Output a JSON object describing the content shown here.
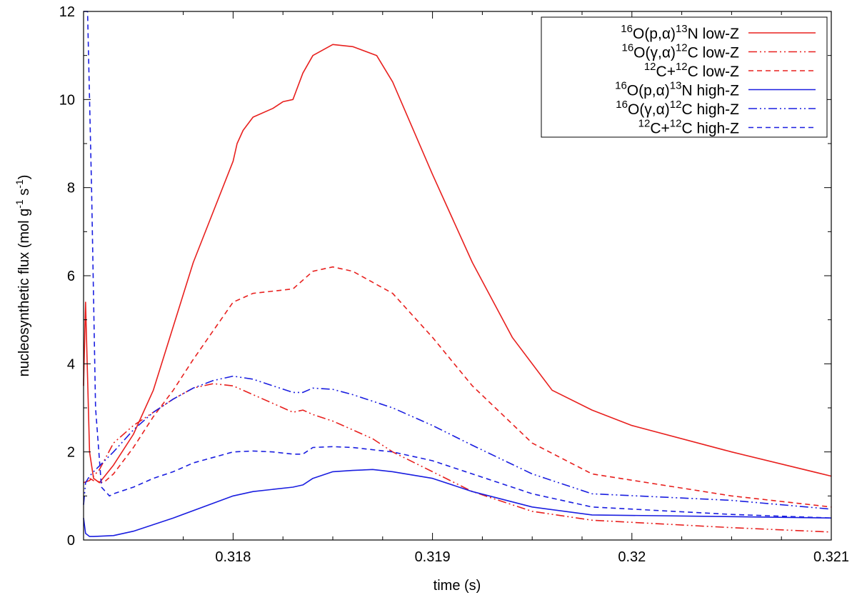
{
  "chart_data": {
    "type": "line",
    "title": "",
    "xlabel": "time (s)",
    "ylabel": {
      "t1": "nucleosynthetic flux (mol g",
      "s1": "-1",
      "t2": " s",
      "s2": "-1",
      "t3": ")"
    },
    "xlim": [
      0.31725,
      0.321
    ],
    "ylim": [
      0,
      12
    ],
    "x_ticks": [
      0.318,
      0.319,
      0.32,
      0.321
    ],
    "x_tick_labels": [
      "0.318",
      "0.319",
      "0.32",
      "0.321"
    ],
    "y_ticks": [
      0,
      2,
      4,
      6,
      8,
      10,
      12
    ],
    "y_tick_labels": [
      "0",
      "2",
      "4",
      "6",
      "8",
      "10",
      "12"
    ],
    "grid": false,
    "legend_position": "top-right",
    "series": [
      {
        "name": "16O(p,α)13N low-Z",
        "label_parts": {
          "s1": "16",
          "b1": "O(p,α)",
          "s2": "13",
          "b2": "N low-Z"
        },
        "color": "#e8201e",
        "dash": "solid",
        "x": [
          0.31725,
          0.31726,
          0.31728,
          0.3173,
          0.31733,
          0.3174,
          0.3175,
          0.3176,
          0.3178,
          0.318,
          0.31802,
          0.31805,
          0.3181,
          0.3182,
          0.31825,
          0.3183,
          0.31835,
          0.3184,
          0.3185,
          0.3186,
          0.31872,
          0.3188,
          0.319,
          0.3192,
          0.3194,
          0.3196,
          0.3198,
          0.32,
          0.3205,
          0.321
        ],
        "y": [
          3.5,
          5.4,
          2.0,
          1.4,
          1.3,
          1.7,
          2.4,
          3.4,
          6.3,
          8.6,
          9.0,
          9.3,
          9.6,
          9.8,
          9.95,
          10.0,
          10.6,
          11.0,
          11.25,
          11.2,
          11.0,
          10.4,
          8.3,
          6.3,
          4.6,
          3.4,
          2.95,
          2.6,
          2.0,
          1.45
        ]
      },
      {
        "name": "16O(γ,α)12C low-Z",
        "label_parts": {
          "s1": "16",
          "b1": "O(γ,α)",
          "s2": "12",
          "b2": "C low-Z"
        },
        "color": "#e8201e",
        "dash": "dashdotdot",
        "x": [
          0.31725,
          0.31728,
          0.3173,
          0.31733,
          0.3174,
          0.3175,
          0.3176,
          0.3177,
          0.3178,
          0.3179,
          0.318,
          0.3181,
          0.3182,
          0.3183,
          0.31835,
          0.3184,
          0.3185,
          0.3186,
          0.3187,
          0.3188,
          0.319,
          0.3192,
          0.3195,
          0.3198,
          0.3205,
          0.321
        ],
        "y": [
          1.3,
          1.35,
          1.45,
          1.6,
          2.2,
          2.6,
          2.9,
          3.2,
          3.45,
          3.55,
          3.5,
          3.3,
          3.1,
          2.9,
          2.95,
          2.85,
          2.7,
          2.5,
          2.3,
          2.0,
          1.55,
          1.1,
          0.65,
          0.45,
          0.28,
          0.18
        ]
      },
      {
        "name": "12C+12C low-Z",
        "label_parts": {
          "s1": "12",
          "b1": "C+",
          "s2": "12",
          "b2": "C low-Z"
        },
        "color": "#e8201e",
        "dash": "dashed",
        "x": [
          0.31728,
          0.3173,
          0.31735,
          0.3174,
          0.3175,
          0.3176,
          0.3177,
          0.3178,
          0.318,
          0.3181,
          0.3182,
          0.3183,
          0.31835,
          0.3184,
          0.3185,
          0.3186,
          0.3188,
          0.319,
          0.3192,
          0.3195,
          0.3198,
          0.3205,
          0.321
        ],
        "y": [
          1.4,
          1.35,
          1.3,
          1.5,
          2.1,
          2.8,
          3.4,
          4.1,
          5.4,
          5.6,
          5.65,
          5.7,
          5.9,
          6.1,
          6.2,
          6.1,
          5.6,
          4.6,
          3.5,
          2.2,
          1.5,
          1.0,
          0.75
        ]
      },
      {
        "name": "16O(p,α)13N high-Z",
        "label_parts": {
          "s1": "16",
          "b1": "O(p,α)",
          "s2": "13",
          "b2": "N high-Z"
        },
        "color": "#1a1ee0",
        "dash": "solid",
        "x": [
          0.31725,
          0.31726,
          0.31728,
          0.3173,
          0.3174,
          0.3175,
          0.3177,
          0.318,
          0.3181,
          0.3183,
          0.31835,
          0.3184,
          0.3185,
          0.3186,
          0.3187,
          0.3188,
          0.319,
          0.3192,
          0.3195,
          0.3198,
          0.3205,
          0.321
        ],
        "y": [
          0.5,
          0.15,
          0.08,
          0.08,
          0.1,
          0.2,
          0.5,
          1.0,
          1.1,
          1.2,
          1.25,
          1.4,
          1.55,
          1.58,
          1.6,
          1.55,
          1.4,
          1.1,
          0.75,
          0.57,
          0.53,
          0.5
        ]
      },
      {
        "name": "16O(γ,α)12C high-Z",
        "label_parts": {
          "s1": "16",
          "b1": "O(γ,α)",
          "s2": "12",
          "b2": "C high-Z"
        },
        "color": "#1a1ee0",
        "dash": "dashdotdot",
        "x": [
          0.31725,
          0.31726,
          0.31728,
          0.3173,
          0.3174,
          0.3175,
          0.3176,
          0.3177,
          0.3178,
          0.3179,
          0.318,
          0.3181,
          0.3182,
          0.3183,
          0.31835,
          0.3184,
          0.3185,
          0.3186,
          0.3188,
          0.319,
          0.3192,
          0.3195,
          0.3198,
          0.3205,
          0.321
        ],
        "y": [
          0.8,
          1.3,
          1.45,
          1.55,
          2.0,
          2.5,
          2.9,
          3.2,
          3.45,
          3.62,
          3.72,
          3.65,
          3.5,
          3.35,
          3.35,
          3.45,
          3.42,
          3.3,
          3.0,
          2.6,
          2.15,
          1.5,
          1.05,
          0.9,
          0.7
        ]
      },
      {
        "name": "12C+12C high-Z",
        "label_parts": {
          "s1": "12",
          "b1": "C+",
          "s2": "12",
          "b2": "C high-Z"
        },
        "color": "#1a1ee0",
        "dash": "dashed",
        "x": [
          0.31725,
          0.31727,
          0.31729,
          0.31731,
          0.31734,
          0.31738,
          0.3174,
          0.3175,
          0.3176,
          0.3177,
          0.3178,
          0.318,
          0.3181,
          0.3182,
          0.3183,
          0.31835,
          0.3184,
          0.3185,
          0.3186,
          0.3188,
          0.319,
          0.3192,
          0.3195,
          0.3198,
          0.3205,
          0.321
        ],
        "y": [
          12.0,
          12.0,
          8.0,
          3.0,
          1.2,
          1.0,
          1.05,
          1.2,
          1.4,
          1.55,
          1.75,
          2.0,
          2.02,
          2.0,
          1.95,
          1.95,
          2.1,
          2.12,
          2.1,
          2.0,
          1.8,
          1.5,
          1.05,
          0.75,
          0.58,
          0.5
        ]
      }
    ]
  }
}
